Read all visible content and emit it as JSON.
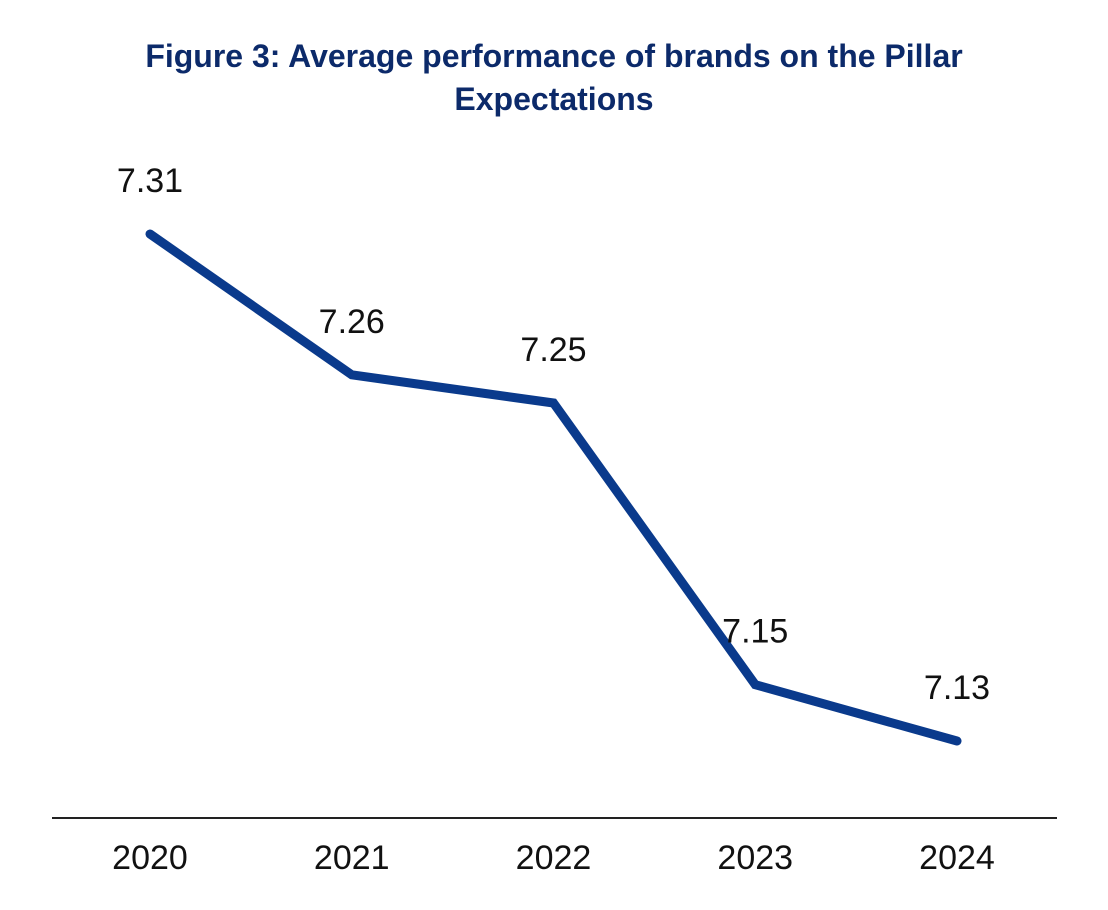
{
  "chart_data": {
    "type": "line",
    "title": "Figure 3: Average performance of brands on the Pillar Expectations",
    "categories": [
      "2020",
      "2021",
      "2022",
      "2023",
      "2024"
    ],
    "values": [
      7.31,
      7.26,
      7.25,
      7.15,
      7.13
    ],
    "color": "#0a3a8c"
  }
}
